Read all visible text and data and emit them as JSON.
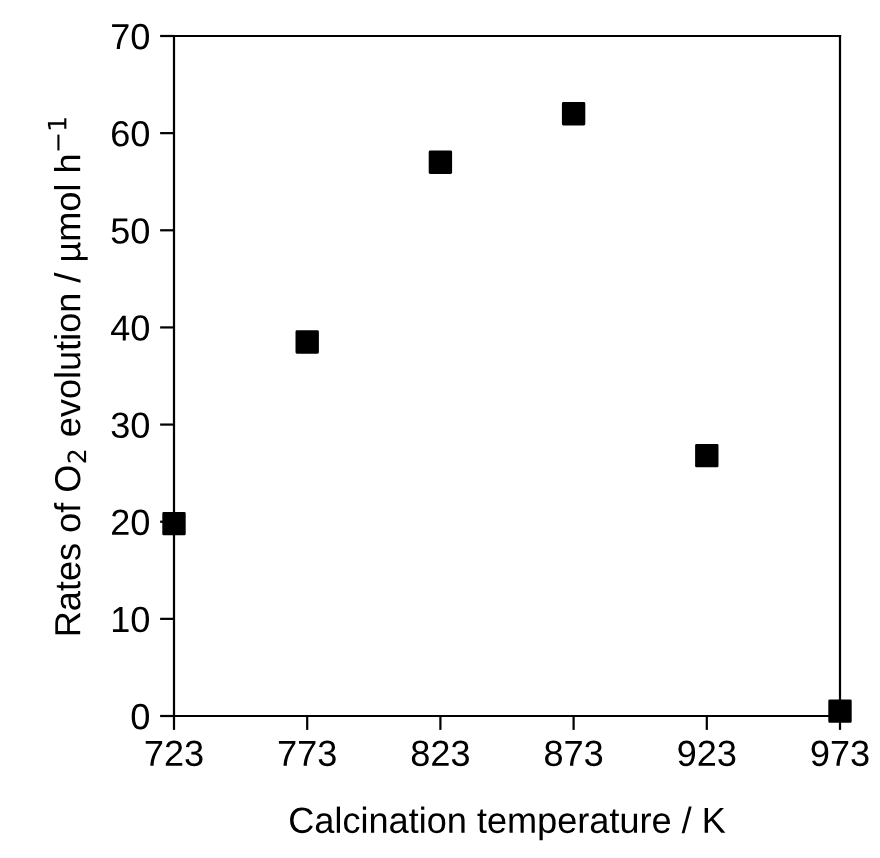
{
  "chart_data": {
    "type": "scatter",
    "xlabel": "Calcination temperature / K",
    "ylabel": "Rates of O$_{2}$ evolution / µmol h$^{−1}$",
    "x": [
      723,
      773,
      823,
      873,
      923,
      973
    ],
    "series": [
      {
        "color": "#000000",
        "values": [
          19.8,
          38.5,
          57,
          62,
          26.8,
          0.5
        ]
      }
    ],
    "xlim": [
      723,
      973
    ],
    "xticks": [
      723,
      773,
      823,
      873,
      923,
      973
    ],
    "ylim": [
      0,
      70
    ],
    "yticks": [
      0,
      10,
      20,
      30,
      40,
      50,
      60,
      70
    ],
    "marker": "square",
    "grid": false,
    "legend": false
  }
}
